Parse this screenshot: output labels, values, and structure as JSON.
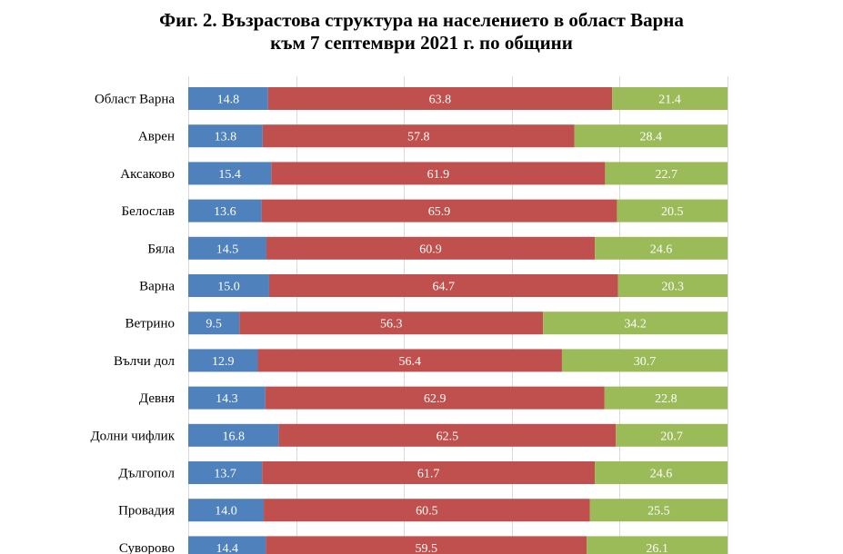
{
  "chart_data": {
    "type": "bar",
    "orientation": "horizontal",
    "stacked": "percent",
    "title_lines": [
      "Фиг. 2. Възрастова структура на населението в област Варна",
      "към 7 септември 2021 г. по общини"
    ],
    "categories": [
      "Област Варна",
      "Аврен",
      "Аксаково",
      "Белослав",
      "Бяла",
      "Варна",
      "Ветрино",
      "Вълчи дол",
      "Девня",
      "Долни чифлик",
      "Дългопол",
      "Провадия",
      "Суворово"
    ],
    "series": [
      {
        "color": "#4f81bd",
        "values": [
          14.8,
          13.8,
          15.4,
          13.6,
          14.5,
          15.0,
          9.5,
          12.9,
          14.3,
          16.8,
          13.7,
          14.0,
          14.4
        ]
      },
      {
        "color": "#c0504d",
        "values": [
          63.8,
          57.8,
          61.9,
          65.9,
          60.9,
          64.7,
          56.3,
          56.4,
          62.9,
          62.5,
          61.7,
          60.5,
          59.5
        ]
      },
      {
        "color": "#9bbb59",
        "values": [
          21.4,
          28.4,
          22.7,
          20.5,
          24.6,
          20.3,
          34.2,
          30.7,
          22.8,
          20.7,
          24.6,
          25.5,
          26.1
        ]
      }
    ],
    "xlim": [
      0,
      100
    ],
    "grid": true,
    "gridline_color": "#d9d9d9"
  }
}
